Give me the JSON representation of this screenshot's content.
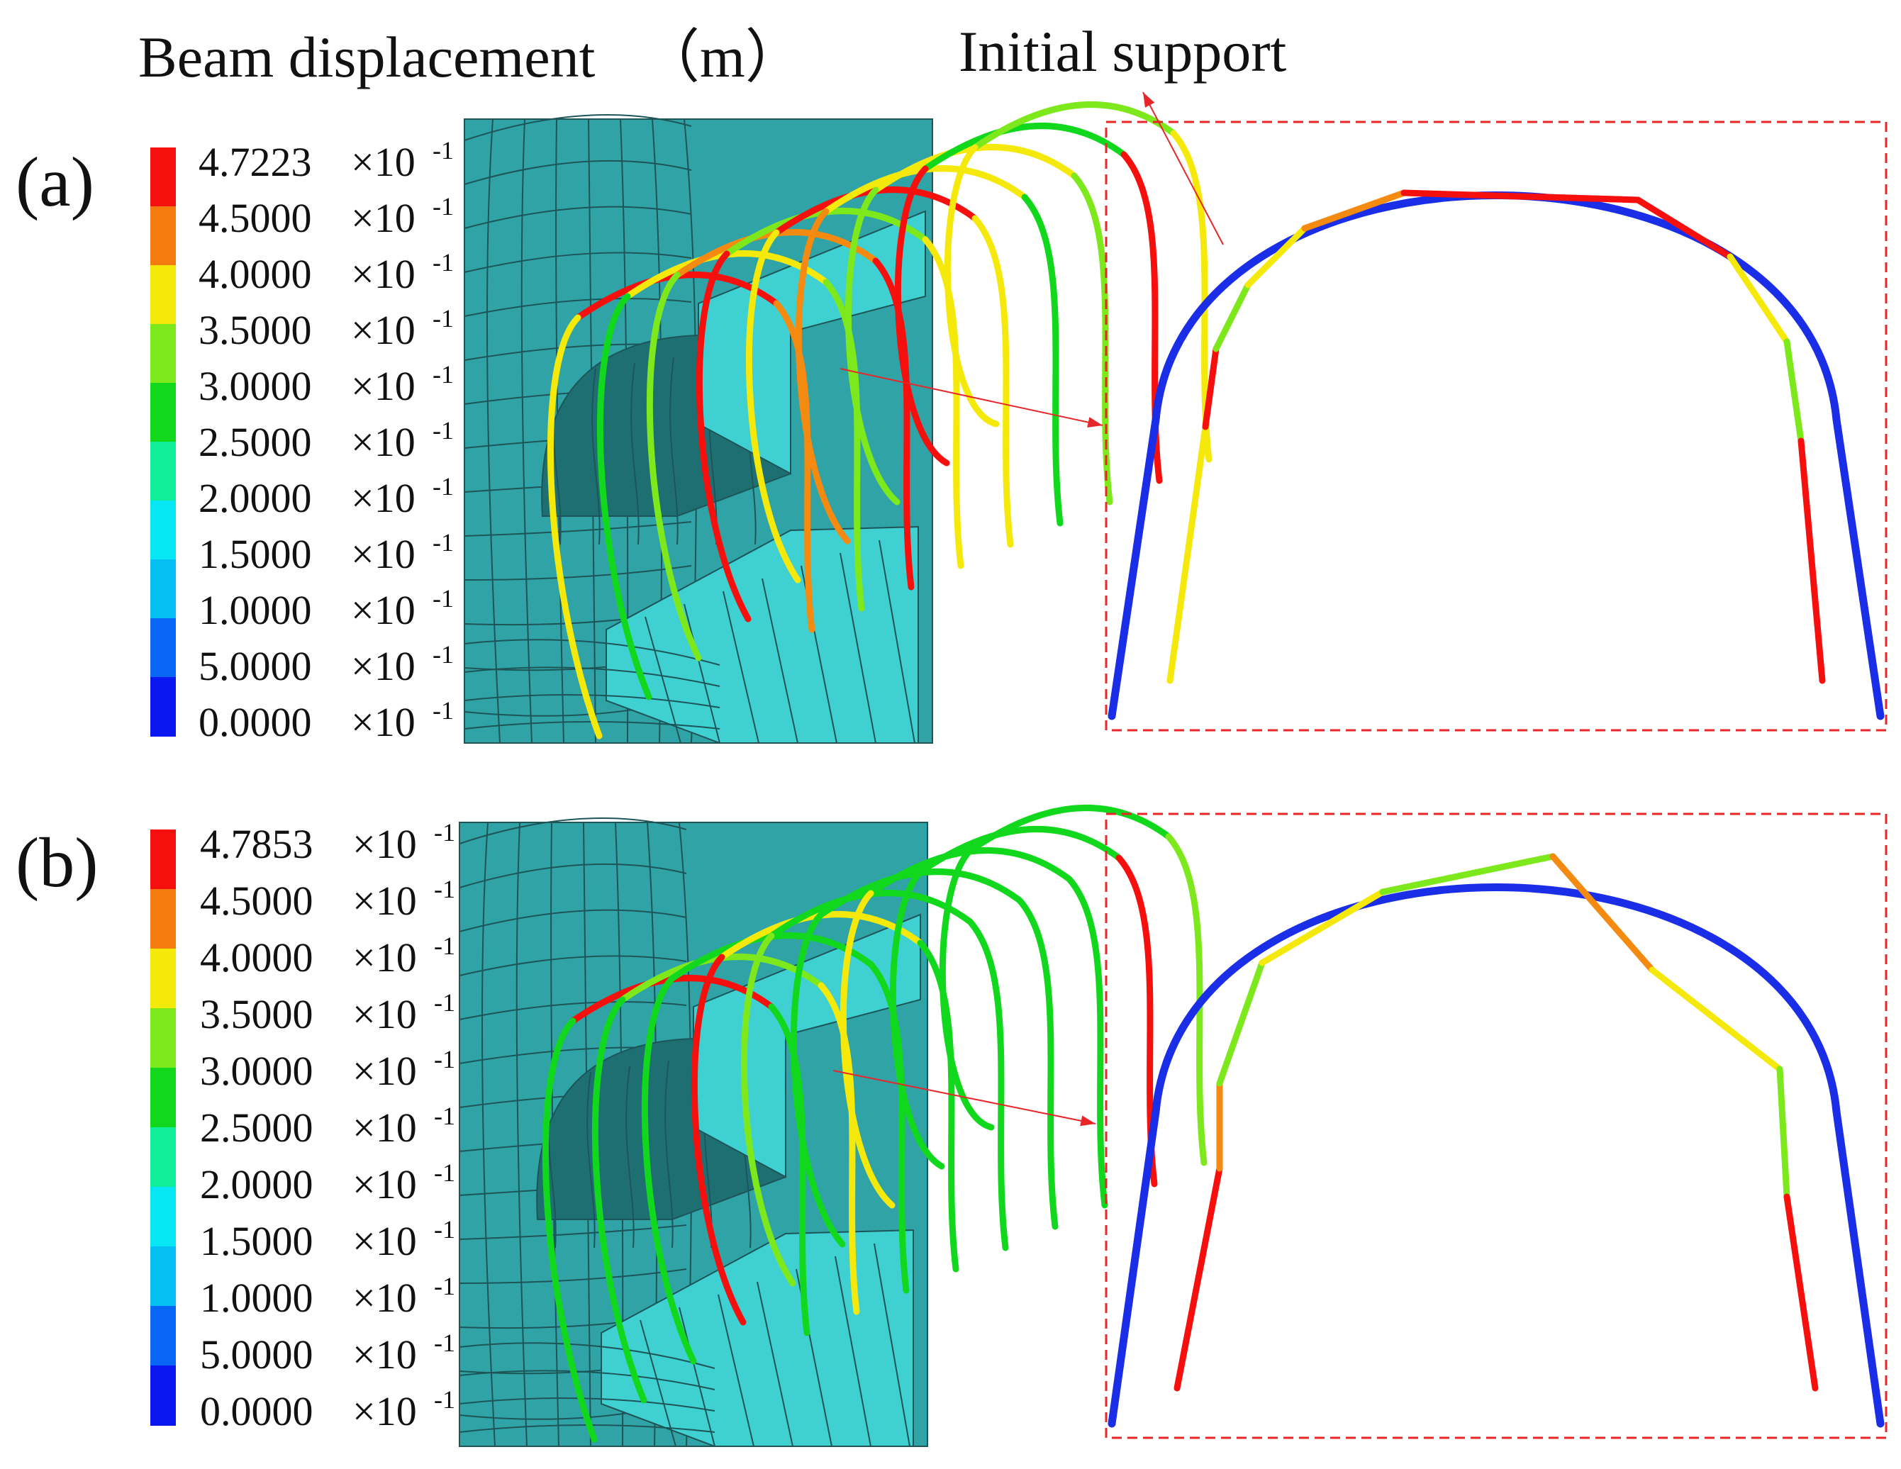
{
  "title": "Beam displacement",
  "unit": "（m）",
  "annotation": "Initial support",
  "colors": {
    "mesh_fill": "#2fa3a5",
    "mesh_line": "#1d5558",
    "block_fill": "#3fd0d2",
    "initial_support": "#1a2ee8",
    "frame": "#e8262a",
    "arrow": "#e8262a"
  },
  "palette": [
    "#0a17f0",
    "#0866f5",
    "#06e6f3",
    "#11ee99",
    "#11d81c",
    "#7de81c",
    "#f5e90c",
    "#f58a10",
    "#f5100e"
  ],
  "panels": [
    {
      "label": "(a)",
      "legend_max": "4.7223",
      "legend": [
        "4.7223",
        "4.5000",
        "4.0000",
        "3.5000",
        "3.0000",
        "2.5000",
        "2.0000",
        "1.5000",
        "1.0000",
        "5.0000",
        "0.0000"
      ],
      "legend_exponent": "×10",
      "legend_exponent_power": "-1",
      "legend_colors": [
        "#f5100e",
        "#f57a10",
        "#f5e90c",
        "#7de81c",
        "#11d81c",
        "#11ee99",
        "#06e6f3",
        "#06bff3",
        "#0866f5",
        "#0a17f0"
      ]
    },
    {
      "label": "(b)",
      "legend_max": "4.7853",
      "legend": [
        "4.7853",
        "4.5000",
        "4.0000",
        "3.5000",
        "3.0000",
        "2.5000",
        "2.0000",
        "1.5000",
        "1.0000",
        "5.0000",
        "0.0000"
      ],
      "legend_exponent": "×10",
      "legend_exponent_power": "-1",
      "legend_colors": [
        "#f5100e",
        "#f57a10",
        "#f5e90c",
        "#7de81c",
        "#11d81c",
        "#11ee99",
        "#06e6f3",
        "#06bff3",
        "#0866f5",
        "#0a17f0"
      ]
    }
  ]
}
